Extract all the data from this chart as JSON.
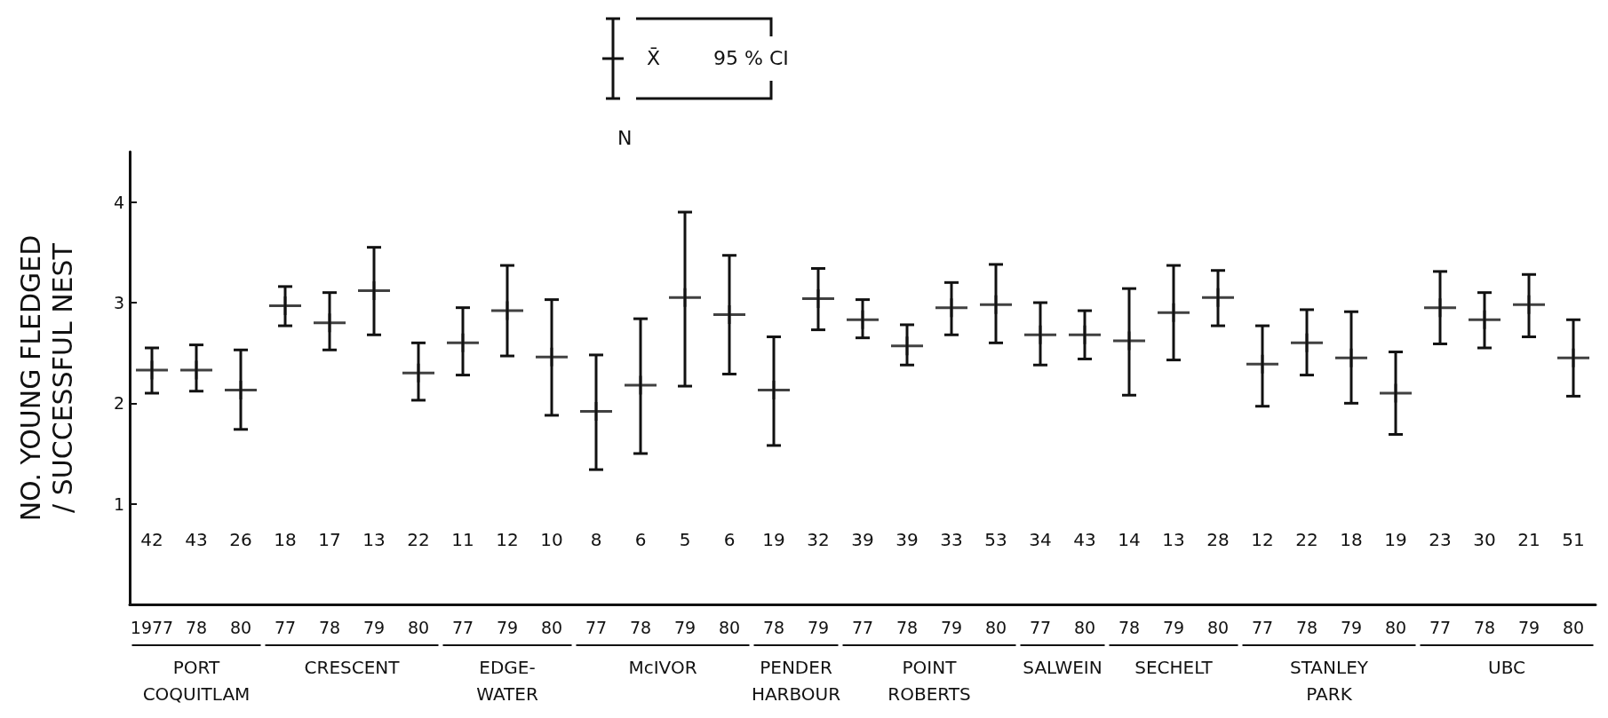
{
  "chart_data": {
    "type": "scatter",
    "ylabel": "NO. YOUNG FLEDGED\n/ SUCCESSFUL NEST",
    "categories": [
      "1977",
      "78",
      "80",
      "77",
      "78",
      "79",
      "80",
      "77",
      "79",
      "80",
      "77",
      "78",
      "79",
      "80",
      "78",
      "79",
      "77",
      "78",
      "79",
      "80",
      "77",
      "80",
      "78",
      "79",
      "80",
      "77",
      "78",
      "79",
      "80",
      "77",
      "78",
      "79",
      "80"
    ],
    "series": [
      {
        "color": "#111111",
        "values": [
          2.33,
          2.33,
          2.13,
          2.97,
          2.8,
          3.12,
          2.3,
          2.6,
          2.92,
          2.46,
          1.92,
          2.18,
          3.05,
          2.88,
          2.13,
          3.04,
          2.83,
          2.57,
          2.95,
          2.98,
          2.68,
          2.68,
          2.62,
          2.9,
          3.05,
          2.39,
          2.6,
          2.45,
          2.1,
          2.95,
          2.83,
          2.98,
          2.45
        ],
        "errors": [
          [
            2.1,
            2.55
          ],
          [
            2.12,
            2.58
          ],
          [
            1.74,
            2.53
          ],
          [
            2.77,
            3.16
          ],
          [
            2.53,
            3.1
          ],
          [
            2.68,
            3.55
          ],
          [
            2.03,
            2.6
          ],
          [
            2.28,
            2.95
          ],
          [
            2.47,
            3.37
          ],
          [
            1.88,
            3.03
          ],
          [
            1.34,
            2.48
          ],
          [
            1.5,
            2.84
          ],
          [
            2.17,
            3.9
          ],
          [
            2.29,
            3.47
          ],
          [
            1.58,
            2.66
          ],
          [
            2.73,
            3.34
          ],
          [
            2.65,
            3.03
          ],
          [
            2.38,
            2.78
          ],
          [
            2.68,
            3.2
          ],
          [
            2.6,
            3.38
          ],
          [
            2.38,
            3.0
          ],
          [
            2.44,
            2.92
          ],
          [
            2.08,
            3.14
          ],
          [
            2.43,
            3.37
          ],
          [
            2.77,
            3.32
          ],
          [
            1.97,
            2.77
          ],
          [
            2.28,
            2.93
          ],
          [
            2.0,
            2.91
          ],
          [
            1.69,
            2.51
          ],
          [
            2.59,
            3.31
          ],
          [
            2.55,
            3.1
          ],
          [
            2.66,
            3.28
          ],
          [
            2.07,
            2.83
          ]
        ]
      }
    ],
    "ylim": [
      0,
      4.5
    ],
    "yticks": [
      1,
      2,
      3,
      4
    ],
    "grid": false,
    "marker": "cross",
    "annotations": [
      "X̄",
      "95 % CI",
      "N",
      "42",
      "43",
      "26",
      "18",
      "17",
      "13",
      "22",
      "11",
      "12",
      "10",
      "8",
      "6",
      "5",
      "6",
      "19",
      "32",
      "39",
      "39",
      "33",
      "53",
      "34",
      "43",
      "14",
      "13",
      "28",
      "12",
      "22",
      "18",
      "19",
      "23",
      "30",
      "21",
      "51",
      "PORT\nCOQUITLAM",
      "CRESCENT",
      "EDGE-\nWATER",
      "McIVOR",
      "PENDER\nHARBOUR",
      "POINT\nROBERTS",
      "SALWEIN",
      "SECHELT",
      "STANLEY\nPARK",
      "UBC"
    ]
  }
}
